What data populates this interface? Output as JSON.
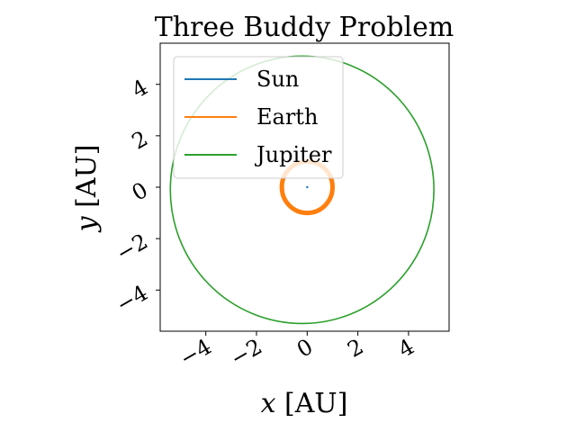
{
  "chart_data": {
    "type": "line",
    "title": "Three Buddy Problem",
    "xlabel_var": "x",
    "xlabel_unit": "[AU]",
    "ylabel_var": "y",
    "ylabel_unit": "[AU]",
    "xlim": [
      -5.8,
      5.6
    ],
    "ylim": [
      -5.6,
      5.6
    ],
    "xticks": [
      -4,
      -2,
      0,
      2,
      4
    ],
    "yticks": [
      -4,
      -2,
      0,
      2,
      4
    ],
    "xtick_labels": [
      "−4",
      "−2",
      "0",
      "2",
      "4"
    ],
    "ytick_labels": [
      "−4",
      "−2",
      "0",
      "2",
      "4"
    ],
    "legend_position": "upper left",
    "series": [
      {
        "name": "Sun",
        "color": "#1f77b4",
        "shape": "point",
        "x": [
          0
        ],
        "y": [
          0
        ]
      },
      {
        "name": "Earth",
        "color": "#ff7f0e",
        "shape": "circle",
        "center": [
          0,
          0
        ],
        "radius": 1.0
      },
      {
        "name": "Jupiter",
        "color": "#2ca02c",
        "shape": "circle",
        "center": [
          -0.2,
          -0.1
        ],
        "radius": 5.2
      }
    ]
  }
}
